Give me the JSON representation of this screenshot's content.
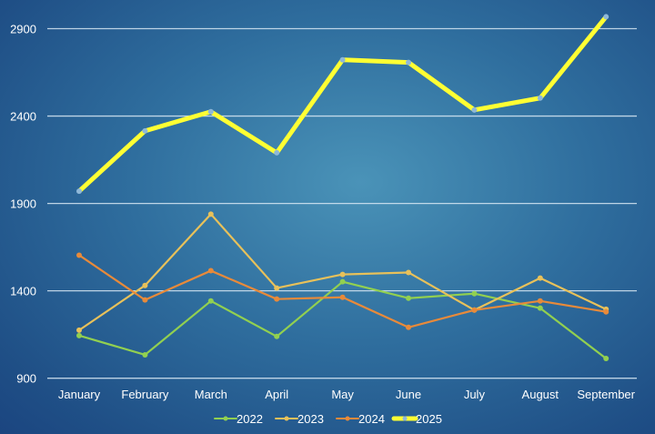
{
  "chart_data": {
    "type": "line",
    "title": "",
    "xlabel": "",
    "ylabel": "",
    "categories": [
      "January",
      "February",
      "March",
      "April",
      "May",
      "June",
      "July",
      "August",
      "September"
    ],
    "ylim": [
      900,
      2900
    ],
    "yticks": [
      900,
      1400,
      1900,
      2400,
      2900
    ],
    "grid": true,
    "legend_position": "bottom",
    "series": [
      {
        "name": "2022",
        "color": "#92d050",
        "values": [
          1144,
          1034,
          1342,
          1139,
          1452,
          1358,
          1384,
          1301,
          1013
        ]
      },
      {
        "name": "2023",
        "color": "#e8c15a",
        "values": [
          1175,
          1431,
          1839,
          1416,
          1494,
          1505,
          1290,
          1473,
          1295
        ]
      },
      {
        "name": "2024",
        "color": "#e88a3a",
        "values": [
          1604,
          1348,
          1515,
          1353,
          1363,
          1191,
          1290,
          1342,
          1280
        ]
      },
      {
        "name": "2025",
        "color": "#ffff33",
        "values": [
          1970,
          2315,
          2425,
          2190,
          2722,
          2707,
          2435,
          2503,
          2968
        ]
      }
    ]
  }
}
